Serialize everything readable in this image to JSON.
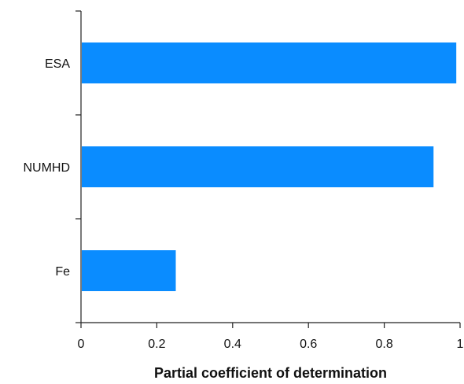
{
  "chart_data": {
    "type": "bar",
    "orientation": "horizontal",
    "categories": [
      "ESA",
      "NUMHD",
      "Fe"
    ],
    "values": [
      0.99,
      0.93,
      0.25
    ],
    "xlabel": "Partial coefficient of determination",
    "ylabel": "",
    "xlim": [
      0,
      1
    ],
    "xticks": [
      "0",
      "0.2",
      "0.4",
      "0.6",
      "0.8",
      "1"
    ],
    "grid": false,
    "legend": "none",
    "bar_color": "#0a8cff"
  }
}
